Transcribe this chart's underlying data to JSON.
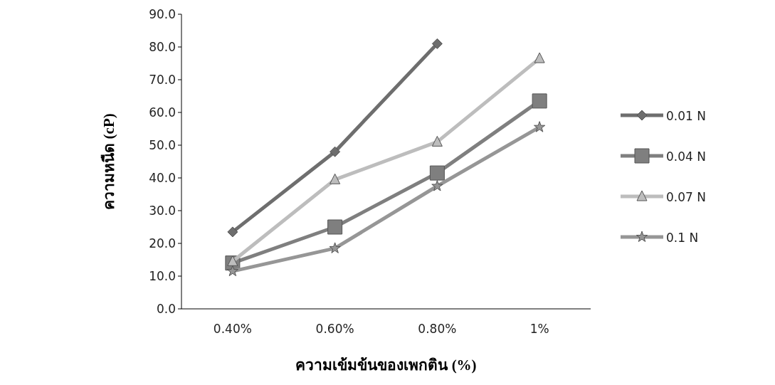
{
  "chart_data": {
    "type": "line",
    "xlabel": "ความเข้มข้นของเพกติน (%)",
    "ylabel": "ความหนืด (cP)",
    "categories": [
      "0.40%",
      "0.60%",
      "0.80%",
      "1%"
    ],
    "ylim": [
      0,
      90
    ],
    "yticks": [
      {
        "value": 0,
        "label": "0.0"
      },
      {
        "value": 10,
        "label": "10.0"
      },
      {
        "value": 20,
        "label": "20.0"
      },
      {
        "value": 30,
        "label": "30.0"
      },
      {
        "value": 40,
        "label": "40.0"
      },
      {
        "value": 50,
        "label": "50.0"
      },
      {
        "value": 60,
        "label": "60.0"
      },
      {
        "value": 70,
        "label": "70.0"
      },
      {
        "value": 80,
        "label": "80.0"
      },
      {
        "value": 90,
        "label": "90.0"
      }
    ],
    "legend": "right",
    "grid": false,
    "line_style": "solid",
    "series": [
      {
        "name": "0.01 N",
        "color": "#6e6e6e",
        "marker": "diamond",
        "values": [
          23.5,
          48,
          81,
          null
        ]
      },
      {
        "name": "0.04 N",
        "color": "#7f7f7f",
        "marker": "square",
        "values": [
          14,
          25,
          41.5,
          63.5
        ]
      },
      {
        "name": "0.07 N",
        "color": "#bdbdbd",
        "marker": "triangle",
        "values": [
          14.5,
          39.5,
          51,
          76.5
        ]
      },
      {
        "name": "0.1 N",
        "color": "#969696",
        "marker": "star",
        "values": [
          11.5,
          18.5,
          37.5,
          55.5
        ]
      }
    ]
  }
}
